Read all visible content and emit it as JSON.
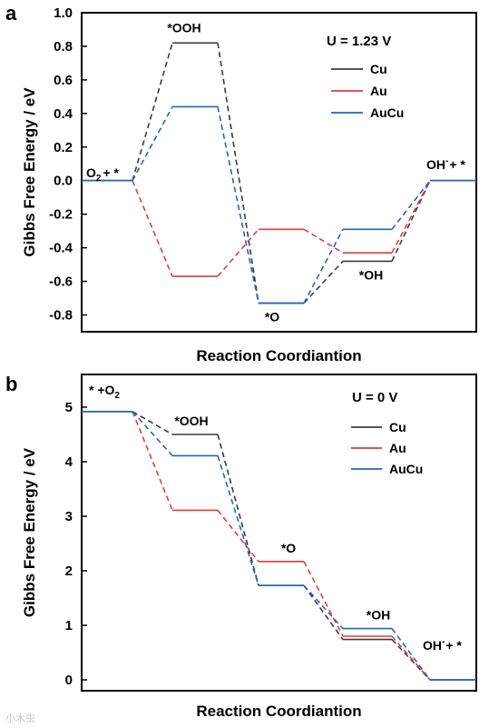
{
  "watermark": "小木虫",
  "chart_data": [
    {
      "panel": "a",
      "type": "line",
      "condition": "U = 1.23 V",
      "xlabel": "Reaction Coordiantion",
      "ylabel": "Gibbs Free Energy / eV",
      "ylim": [
        -0.9,
        1.0
      ],
      "yticks": [
        -0.8,
        -0.6,
        -0.4,
        -0.2,
        0.0,
        0.2,
        0.4,
        0.6,
        0.8,
        1.0
      ],
      "ytick_labels": [
        "-0.8",
        "-0.6",
        "-0.4",
        "-0.2",
        "0.0",
        "0.2",
        "0.4",
        "0.6",
        "0.8",
        "1.0"
      ],
      "steps": [
        "O2 + *",
        "*OOH",
        "*O",
        "*OH",
        "OH- + *"
      ],
      "series": [
        {
          "name": "Cu",
          "color": "#3a3a3a",
          "values": [
            0.0,
            0.82,
            -0.73,
            -0.48,
            0.0
          ]
        },
        {
          "name": "Au",
          "color": "#e03c3c",
          "values": [
            0.0,
            -0.57,
            -0.29,
            -0.43,
            0.0
          ]
        },
        {
          "name": "AuCu",
          "color": "#2166c1",
          "values": [
            0.0,
            0.44,
            -0.73,
            -0.29,
            0.0
          ]
        }
      ],
      "annotations": [
        {
          "text": "*OOH",
          "step": 1
        },
        {
          "text": "*O",
          "step": 2
        },
        {
          "text": "*OH",
          "step": 3
        }
      ],
      "start_label": {
        "main": "O",
        "sub": "2",
        "rest": "+ *"
      },
      "end_label": {
        "main": "OH",
        "sup": "-",
        "rest": "+ *"
      }
    },
    {
      "panel": "b",
      "type": "line",
      "condition": "U = 0 V",
      "xlabel": "Reaction Coordiantion",
      "ylabel": "Gibbs Free Energy / eV",
      "ylim": [
        -0.2,
        5.6
      ],
      "yticks": [
        0,
        1,
        2,
        3,
        4,
        5
      ],
      "ytick_labels": [
        "0",
        "1",
        "2",
        "3",
        "4",
        "5"
      ],
      "steps": [
        "* + O2",
        "*OOH",
        "*O",
        "*OH",
        "OH- + *"
      ],
      "series": [
        {
          "name": "Cu",
          "color": "#3a3a3a",
          "values": [
            4.92,
            4.5,
            1.73,
            0.74,
            0.0
          ]
        },
        {
          "name": "Au",
          "color": "#e03c3c",
          "values": [
            4.92,
            3.11,
            2.17,
            0.8,
            0.0
          ]
        },
        {
          "name": "AuCu",
          "color": "#2166c1",
          "values": [
            4.92,
            4.11,
            1.73,
            0.94,
            0.0
          ]
        }
      ],
      "annotations": [
        {
          "text": "*OOH",
          "step": 1
        },
        {
          "text": "*O",
          "step": 2
        },
        {
          "text": "*OH",
          "step": 3
        }
      ],
      "start_label": {
        "main": "* +O",
        "sub": "2",
        "rest": ""
      },
      "end_label": {
        "main": "OH",
        "sup": "-",
        "rest": "+ *"
      }
    }
  ]
}
